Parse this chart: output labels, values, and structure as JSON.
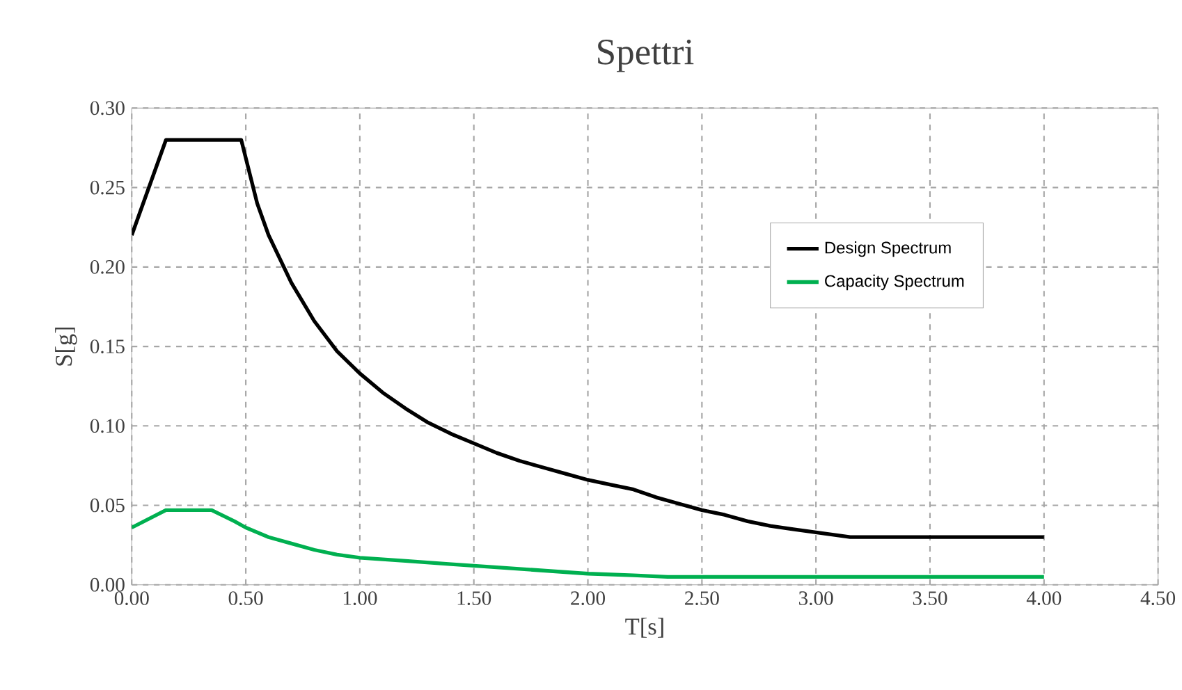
{
  "chart_data": {
    "type": "line",
    "title": "Spettri",
    "xlabel": "T[s]",
    "ylabel": "S[g]",
    "xlim": [
      0,
      4.5
    ],
    "xticks": [
      {
        "value": 0,
        "label": "0.00"
      },
      {
        "value": 0.5,
        "label": "0.50"
      },
      {
        "value": 1,
        "label": "1.00"
      },
      {
        "value": 1.5,
        "label": "1.50"
      },
      {
        "value": 2,
        "label": "2.00"
      },
      {
        "value": 2.5,
        "label": "2.50"
      },
      {
        "value": 3,
        "label": "3.00"
      },
      {
        "value": 3.5,
        "label": "3.50"
      },
      {
        "value": 4,
        "label": "4.00"
      },
      {
        "value": 4.5,
        "label": "4.50"
      }
    ],
    "ylim": [
      0,
      0.3
    ],
    "yticks": [
      {
        "value": 0,
        "label": "0.00"
      },
      {
        "value": 0.05,
        "label": "0.05"
      },
      {
        "value": 0.1,
        "label": "0.10"
      },
      {
        "value": 0.15,
        "label": "0.15"
      },
      {
        "value": 0.2,
        "label": "0.20"
      },
      {
        "value": 0.25,
        "label": "0.25"
      },
      {
        "value": 0.3,
        "label": "0.30"
      }
    ],
    "grid": true,
    "legend": "top right",
    "marker": "none",
    "line_style": "solid",
    "series": [
      {
        "name": "Design Spectrum",
        "color": "#000000",
        "x": [
          0,
          0.15,
          0.48,
          0.55,
          0.6,
          0.7,
          0.8,
          0.9,
          1.0,
          1.1,
          1.2,
          1.3,
          1.4,
          1.5,
          1.6,
          1.7,
          1.8,
          1.9,
          2.0,
          2.1,
          2.2,
          2.3,
          2.4,
          2.5,
          2.6,
          2.7,
          2.8,
          2.9,
          3.0,
          3.1,
          3.15,
          4.0
        ],
        "values": [
          0.22,
          0.28,
          0.28,
          0.24,
          0.22,
          0.19,
          0.166,
          0.147,
          0.133,
          0.121,
          0.111,
          0.102,
          0.095,
          0.089,
          0.083,
          0.078,
          0.074,
          0.07,
          0.066,
          0.063,
          0.06,
          0.055,
          0.051,
          0.047,
          0.044,
          0.04,
          0.037,
          0.035,
          0.033,
          0.031,
          0.03,
          0.03
        ]
      },
      {
        "name": "Capacity Spectrum",
        "color": "#00b050",
        "x": [
          0,
          0.15,
          0.35,
          0.45,
          0.5,
          0.6,
          0.7,
          0.8,
          0.9,
          1.0,
          1.2,
          1.4,
          1.6,
          1.8,
          2.0,
          2.2,
          2.35,
          4.0
        ],
        "values": [
          0.036,
          0.047,
          0.047,
          0.04,
          0.036,
          0.03,
          0.026,
          0.022,
          0.019,
          0.017,
          0.015,
          0.013,
          0.011,
          0.009,
          0.007,
          0.006,
          0.005,
          0.005
        ]
      }
    ]
  }
}
